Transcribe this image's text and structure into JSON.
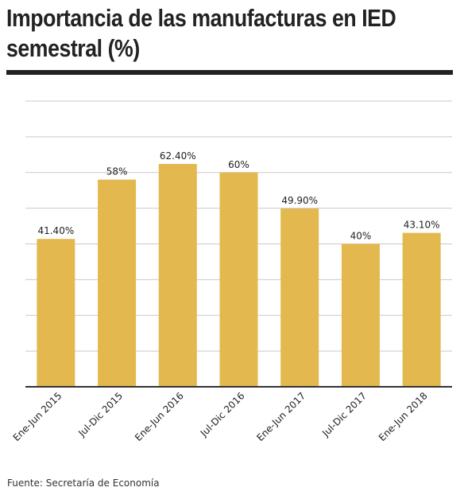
{
  "title": "Importancia de las manufacturas en IED semestral (%)",
  "source": "Fuente: Secretaría de Economía",
  "colors": {
    "bar": "#E3B84E",
    "grid": "#C9C9C9",
    "axis": "#333333",
    "text": "#222222"
  },
  "chart_data": {
    "type": "bar",
    "title": "Importancia de las manufacturas en IED semestral (%)",
    "xlabel": "",
    "ylabel": "",
    "ylim": [
      0,
      80
    ],
    "grid": true,
    "categories": [
      "Ene-Jun 2015",
      "Jul-Dic 2015",
      "Ene-Jun 2016",
      "Jul-Dic 2016",
      "Ene-Jun 2017",
      "Jul-Dic 2017",
      "Ene-Jun 2018"
    ],
    "values": [
      41.4,
      58,
      62.4,
      60,
      49.9,
      40,
      43.1
    ],
    "data_labels": [
      "41.40%",
      "58%",
      "62.40%",
      "60%",
      "49.90%",
      "40%",
      "43.10%"
    ]
  }
}
